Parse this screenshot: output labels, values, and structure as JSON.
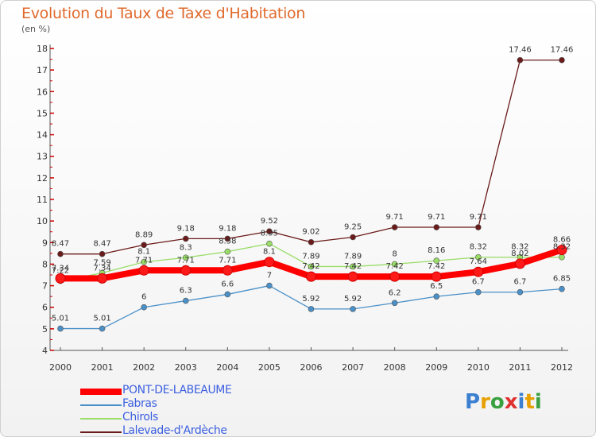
{
  "chart_data": {
    "type": "line",
    "title": "Evolution du Taux de Taxe d'Habitation",
    "subtitle": "(en %)",
    "x": [
      "2000",
      "2001",
      "2002",
      "2003",
      "2004",
      "2005",
      "2006",
      "2007",
      "2008",
      "2009",
      "2010",
      "2011",
      "2012"
    ],
    "ylim": [
      4,
      18
    ],
    "yticks": [
      4,
      5,
      6,
      7,
      8,
      9,
      10,
      11,
      12,
      13,
      14,
      15,
      16,
      17,
      18
    ],
    "grid": false,
    "legend_position": "bottom-left",
    "series": [
      {
        "name": "PONT-DE-LABEAUME",
        "color": "#ff0000",
        "values": [
          7.34,
          7.34,
          7.71,
          7.71,
          7.71,
          8.1,
          7.42,
          7.42,
          7.42,
          7.42,
          7.64,
          8.02,
          8.66
        ],
        "labels": [
          "7.34",
          "7.34",
          "7.71",
          "7.71",
          "7.71",
          "8.1",
          "7.42",
          "7.42",
          "7.42",
          "7.42",
          "7.64",
          "8.02",
          "8.66"
        ]
      },
      {
        "name": "Fabras",
        "color": "#4a90c8",
        "values": [
          5.01,
          5.01,
          6,
          6.3,
          6.6,
          7,
          5.92,
          5.92,
          6.2,
          6.5,
          6.7,
          6.7,
          6.85
        ],
        "labels": [
          "5.01",
          "5.01",
          "6",
          "6.3",
          "6.6",
          "7",
          "5.92",
          "5.92",
          "6.2",
          "6.5",
          "6.7",
          "6.7",
          "6.85"
        ]
      },
      {
        "name": "Chirols",
        "color": "#99dd66",
        "values": [
          7.22,
          7.59,
          8.1,
          8.3,
          8.58,
          8.95,
          7.89,
          7.89,
          8,
          8.16,
          8.32,
          8.32,
          8.32
        ],
        "labels": [
          "7.22",
          "7.59",
          "8.1",
          "8.3",
          "8.58",
          "8.95",
          "7.89",
          "7.89",
          "8",
          "8.16",
          "8.32",
          "8.32",
          "8.32"
        ]
      },
      {
        "name": "Lalevade-d'Ardèche",
        "color": "#6b1a1a",
        "values": [
          8.47,
          8.47,
          8.89,
          9.18,
          9.18,
          9.52,
          9.02,
          9.25,
          9.71,
          9.71,
          9.71,
          17.46,
          17.46
        ],
        "labels": [
          "8.47",
          "8.47",
          "8.89",
          "9.18",
          "9.18",
          "9.52",
          "9.02",
          "9.25",
          "9.71",
          "9.71",
          "9.71",
          "17.46",
          "17.46"
        ]
      }
    ]
  },
  "logo": {
    "letters": [
      "P",
      "r",
      "o",
      "x",
      "i",
      "t",
      "i"
    ],
    "colors": [
      "#3a7fd0",
      "#e8a000",
      "#3aa040",
      "#e03030",
      "#3a7fd0",
      "#e8a000",
      "#3aa040"
    ]
  }
}
